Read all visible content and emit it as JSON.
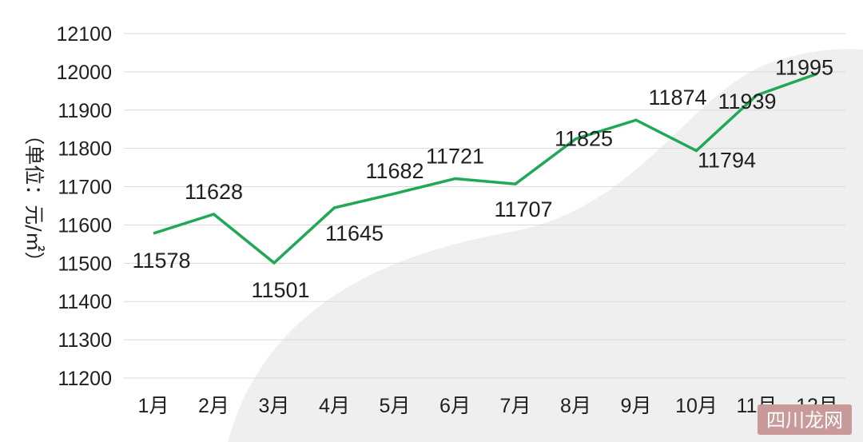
{
  "chart_data": {
    "type": "line",
    "title": "",
    "xlabel": "",
    "ylabel": "（单位：元/㎡）",
    "categories": [
      "1月",
      "2月",
      "3月",
      "4月",
      "5月",
      "6月",
      "7月",
      "8月",
      "9月",
      "10月",
      "11月",
      "12月"
    ],
    "series": [
      {
        "values": [
          11578,
          11628,
          11501,
          11645,
          11682,
          11721,
          11707,
          11825,
          11874,
          11794,
          11939,
          11995
        ],
        "data_labels": [
          "11578",
          "11628",
          "11501",
          "11645",
          "11682",
          "11721",
          "11707",
          "11825",
          "11874",
          "11794",
          "11939",
          "11995"
        ],
        "color": "#1fa855"
      }
    ],
    "ylim": [
      11200,
      12100
    ],
    "yticks": [
      11200,
      11300,
      11400,
      11500,
      11600,
      11700,
      11800,
      11900,
      12000,
      12100
    ],
    "ytick_labels": [
      "11200",
      "11300",
      "11400",
      "11500",
      "11600",
      "11700",
      "11800",
      "11900",
      "12000",
      "12100"
    ],
    "grid": true,
    "legend": "none"
  },
  "watermark": {
    "text": "四川龙网"
  },
  "colors": {
    "line": "#1fa855",
    "grid": "#d9d9d9",
    "background_shape": "#efefef",
    "watermark_bg": "#c89a9a"
  }
}
